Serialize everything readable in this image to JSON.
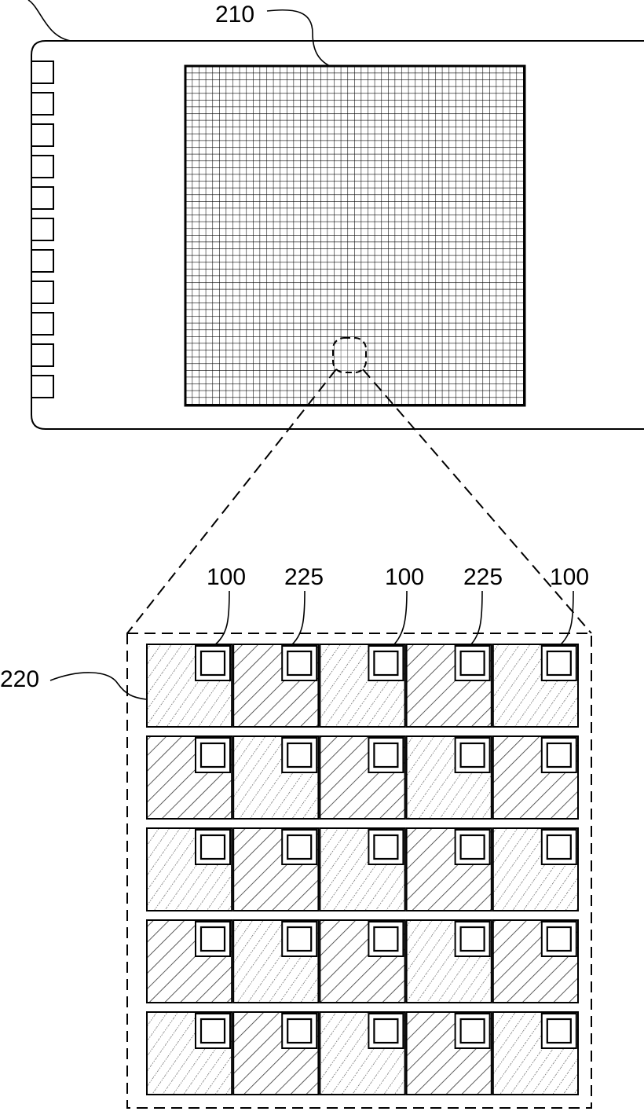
{
  "labels": {
    "array": "210",
    "panel": "220",
    "cell_a": "100",
    "cell_b": "225",
    "cell_c": "100",
    "cell_d": "225",
    "cell_e": "100"
  },
  "grid": {
    "rows": 5,
    "cols": 5
  },
  "pads": {
    "count": 11
  },
  "colors": {
    "line": "#000000",
    "hatch": "#3a3a3a",
    "background": "#ffffff"
  }
}
